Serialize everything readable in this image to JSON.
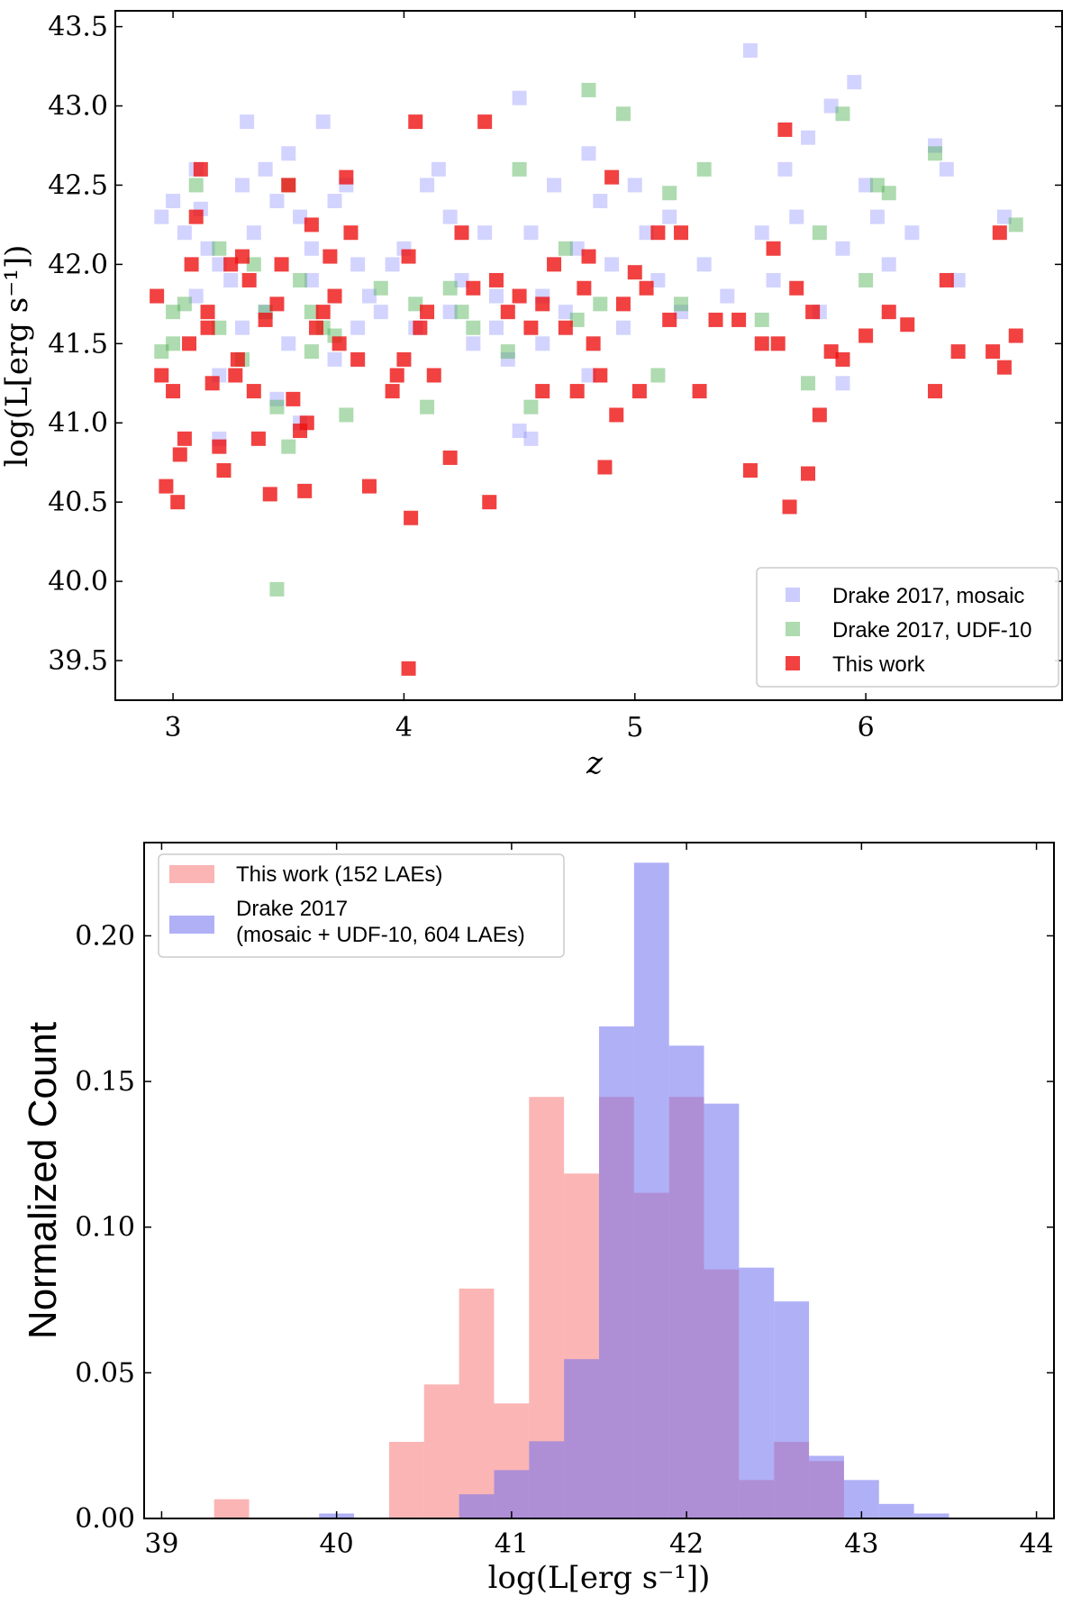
{
  "chart_data": [
    {
      "type": "scatter",
      "xlabel": "z",
      "ylabel": "log(L[erg s⁻¹])",
      "xlim": [
        2.75,
        6.85
      ],
      "ylim": [
        39.25,
        43.6
      ],
      "x_ticks": [
        "3",
        "4",
        "5",
        "6"
      ],
      "y_ticks": [
        "39.5",
        "40.0",
        "40.5",
        "41.0",
        "41.5",
        "42.0",
        "42.5",
        "43.0",
        "43.5"
      ],
      "legend_position": "lower-right",
      "series": [
        {
          "name": "Drake 2017, mosaic",
          "color": "#8080ff",
          "points": [
            [
              2.95,
              42.3
            ],
            [
              3.0,
              42.4
            ],
            [
              3.05,
              42.2
            ],
            [
              3.1,
              42.6
            ],
            [
              3.12,
              42.35
            ],
            [
              3.15,
              42.1
            ],
            [
              3.2,
              42.0
            ],
            [
              3.25,
              41.9
            ],
            [
              3.3,
              42.5
            ],
            [
              3.32,
              42.9
            ],
            [
              3.35,
              42.2
            ],
            [
              3.4,
              42.6
            ],
            [
              3.45,
              42.4
            ],
            [
              3.5,
              42.7
            ],
            [
              3.55,
              42.3
            ],
            [
              3.6,
              42.1
            ],
            [
              3.65,
              42.9
            ],
            [
              3.7,
              42.4
            ],
            [
              3.75,
              42.5
            ],
            [
              3.8,
              42.0
            ],
            [
              3.85,
              41.8
            ],
            [
              3.9,
              41.7
            ],
            [
              3.95,
              42.0
            ],
            [
              4.0,
              42.1
            ],
            [
              4.05,
              41.6
            ],
            [
              4.1,
              42.5
            ],
            [
              4.15,
              42.6
            ],
            [
              4.2,
              42.3
            ],
            [
              4.25,
              41.9
            ],
            [
              4.3,
              41.5
            ],
            [
              4.35,
              42.2
            ],
            [
              4.4,
              41.8
            ],
            [
              4.45,
              41.4
            ],
            [
              4.5,
              43.05
            ],
            [
              4.55,
              42.2
            ],
            [
              4.6,
              41.8
            ],
            [
              4.65,
              42.5
            ],
            [
              4.7,
              41.7
            ],
            [
              4.75,
              42.1
            ],
            [
              4.8,
              42.7
            ],
            [
              4.85,
              42.4
            ],
            [
              4.9,
              42.0
            ],
            [
              4.95,
              41.6
            ],
            [
              5.0,
              42.5
            ],
            [
              5.05,
              42.2
            ],
            [
              5.1,
              41.9
            ],
            [
              5.15,
              42.3
            ],
            [
              5.2,
              41.7
            ],
            [
              5.3,
              42.0
            ],
            [
              5.4,
              41.8
            ],
            [
              5.5,
              43.35
            ],
            [
              5.55,
              42.2
            ],
            [
              5.6,
              41.9
            ],
            [
              5.65,
              42.6
            ],
            [
              5.7,
              42.3
            ],
            [
              5.75,
              42.8
            ],
            [
              5.8,
              41.7
            ],
            [
              5.85,
              43.0
            ],
            [
              5.9,
              42.1
            ],
            [
              5.95,
              43.15
            ],
            [
              6.0,
              42.5
            ],
            [
              6.05,
              42.3
            ],
            [
              6.1,
              42.0
            ],
            [
              6.2,
              42.2
            ],
            [
              6.3,
              42.75
            ],
            [
              6.35,
              42.6
            ],
            [
              6.4,
              41.9
            ],
            [
              6.6,
              42.3
            ],
            [
              3.1,
              41.8
            ],
            [
              3.3,
              41.6
            ],
            [
              3.5,
              41.5
            ],
            [
              3.7,
              41.4
            ],
            [
              3.2,
              41.3
            ],
            [
              3.4,
              41.7
            ],
            [
              3.6,
              41.9
            ],
            [
              3.8,
              41.6
            ],
            [
              4.2,
              41.7
            ],
            [
              4.4,
              41.6
            ],
            [
              4.6,
              41.5
            ],
            [
              4.8,
              41.3
            ],
            [
              3.2,
              40.9
            ],
            [
              3.45,
              41.15
            ],
            [
              3.55,
              41.0
            ],
            [
              4.55,
              40.9
            ],
            [
              4.5,
              40.95
            ],
            [
              5.9,
              41.25
            ]
          ]
        },
        {
          "name": "Drake 2017, UDF-10",
          "color": "#4caf50",
          "points": [
            [
              2.95,
              41.45
            ],
            [
              3.0,
              41.7
            ],
            [
              3.05,
              41.75
            ],
            [
              3.1,
              42.5
            ],
            [
              3.2,
              41.6
            ],
            [
              3.3,
              41.4
            ],
            [
              3.35,
              42.0
            ],
            [
              3.4,
              41.7
            ],
            [
              3.45,
              41.1
            ],
            [
              3.5,
              42.5
            ],
            [
              3.55,
              41.9
            ],
            [
              3.6,
              41.7
            ],
            [
              3.65,
              41.6
            ],
            [
              3.7,
              41.55
            ],
            [
              3.75,
              41.05
            ],
            [
              3.45,
              39.95
            ],
            [
              3.5,
              40.85
            ],
            [
              3.9,
              41.85
            ],
            [
              4.05,
              41.75
            ],
            [
              4.1,
              41.1
            ],
            [
              4.2,
              41.85
            ],
            [
              4.25,
              41.7
            ],
            [
              4.3,
              41.6
            ],
            [
              4.45,
              41.45
            ],
            [
              4.5,
              42.6
            ],
            [
              4.55,
              41.1
            ],
            [
              4.7,
              42.1
            ],
            [
              4.8,
              43.1
            ],
            [
              4.85,
              41.75
            ],
            [
              4.95,
              42.95
            ],
            [
              5.1,
              41.3
            ],
            [
              5.15,
              42.45
            ],
            [
              5.2,
              41.75
            ],
            [
              5.3,
              42.6
            ],
            [
              5.55,
              41.65
            ],
            [
              5.75,
              41.25
            ],
            [
              5.8,
              42.2
            ],
            [
              5.9,
              42.95
            ],
            [
              6.0,
              41.9
            ],
            [
              6.05,
              42.5
            ],
            [
              6.1,
              42.45
            ],
            [
              6.3,
              42.7
            ],
            [
              6.65,
              42.25
            ],
            [
              3.0,
              41.5
            ],
            [
              3.2,
              42.1
            ],
            [
              3.6,
              41.45
            ],
            [
              4.75,
              41.65
            ]
          ]
        },
        {
          "name": "This work",
          "color": "#ee1111",
          "points": [
            [
              2.93,
              41.8
            ],
            [
              2.95,
              41.3
            ],
            [
              2.97,
              40.6
            ],
            [
              3.0,
              41.2
            ],
            [
              3.02,
              40.5
            ],
            [
              3.03,
              40.8
            ],
            [
              3.05,
              40.9
            ],
            [
              3.07,
              41.5
            ],
            [
              3.08,
              42.0
            ],
            [
              3.1,
              42.3
            ],
            [
              3.12,
              42.6
            ],
            [
              3.15,
              41.6
            ],
            [
              3.17,
              41.25
            ],
            [
              3.2,
              40.85
            ],
            [
              3.22,
              40.7
            ],
            [
              3.25,
              42.0
            ],
            [
              3.27,
              41.3
            ],
            [
              3.3,
              42.05
            ],
            [
              3.33,
              41.9
            ],
            [
              3.35,
              41.2
            ],
            [
              3.37,
              40.9
            ],
            [
              3.4,
              41.65
            ],
            [
              3.42,
              40.55
            ],
            [
              3.45,
              41.75
            ],
            [
              3.47,
              42.0
            ],
            [
              3.5,
              42.5
            ],
            [
              3.52,
              41.15
            ],
            [
              3.55,
              40.95
            ],
            [
              3.57,
              40.57
            ],
            [
              3.6,
              42.25
            ],
            [
              3.62,
              41.6
            ],
            [
              3.65,
              41.7
            ],
            [
              3.68,
              42.05
            ],
            [
              3.7,
              41.8
            ],
            [
              3.72,
              41.5
            ],
            [
              3.75,
              42.55
            ],
            [
              3.77,
              42.2
            ],
            [
              3.8,
              41.4
            ],
            [
              3.85,
              40.6
            ],
            [
              3.95,
              41.2
            ],
            [
              3.97,
              41.3
            ],
            [
              4.0,
              41.4
            ],
            [
              4.02,
              42.05
            ],
            [
              4.03,
              40.4
            ],
            [
              4.05,
              42.9
            ],
            [
              4.07,
              41.6
            ],
            [
              4.1,
              41.7
            ],
            [
              4.13,
              41.3
            ],
            [
              4.2,
              40.78
            ],
            [
              4.25,
              42.2
            ],
            [
              4.3,
              41.85
            ],
            [
              4.35,
              42.9
            ],
            [
              4.37,
              40.5
            ],
            [
              4.4,
              41.9
            ],
            [
              4.45,
              41.7
            ],
            [
              4.5,
              41.8
            ],
            [
              4.55,
              41.6
            ],
            [
              4.6,
              41.75
            ],
            [
              4.65,
              42.0
            ],
            [
              4.7,
              41.6
            ],
            [
              4.75,
              41.2
            ],
            [
              4.78,
              41.85
            ],
            [
              4.8,
              42.05
            ],
            [
              4.82,
              41.5
            ],
            [
              4.85,
              41.3
            ],
            [
              4.87,
              40.72
            ],
            [
              4.9,
              42.55
            ],
            [
              4.92,
              41.05
            ],
            [
              4.95,
              41.75
            ],
            [
              5.0,
              41.95
            ],
            [
              5.02,
              41.2
            ],
            [
              5.05,
              41.85
            ],
            [
              5.1,
              42.2
            ],
            [
              5.15,
              41.65
            ],
            [
              5.2,
              42.2
            ],
            [
              5.28,
              41.2
            ],
            [
              5.35,
              41.65
            ],
            [
              5.45,
              41.65
            ],
            [
              5.5,
              40.7
            ],
            [
              5.55,
              41.5
            ],
            [
              5.6,
              42.1
            ],
            [
              5.62,
              41.5
            ],
            [
              5.65,
              42.85
            ],
            [
              5.67,
              40.47
            ],
            [
              5.7,
              41.85
            ],
            [
              5.75,
              40.68
            ],
            [
              5.77,
              41.7
            ],
            [
              5.8,
              41.05
            ],
            [
              5.85,
              41.45
            ],
            [
              5.9,
              41.4
            ],
            [
              6.0,
              41.55
            ],
            [
              6.1,
              41.7
            ],
            [
              6.18,
              41.62
            ],
            [
              6.3,
              41.2
            ],
            [
              6.35,
              41.9
            ],
            [
              6.4,
              41.45
            ],
            [
              6.55,
              41.45
            ],
            [
              6.58,
              42.2
            ],
            [
              6.6,
              41.35
            ],
            [
              6.65,
              41.55
            ],
            [
              4.02,
              39.45
            ],
            [
              3.58,
              41.0
            ],
            [
              3.28,
              41.4
            ],
            [
              4.6,
              41.2
            ],
            [
              3.15,
              41.7
            ]
          ]
        }
      ]
    },
    {
      "type": "bar",
      "xlabel": "log(L[erg s⁻¹])",
      "ylabel": "Normalized Count",
      "xlim": [
        38.9,
        44.1
      ],
      "ylim": [
        0,
        0.232
      ],
      "x_ticks": [
        "39",
        "40",
        "41",
        "42",
        "43",
        "44"
      ],
      "y_ticks": [
        "0.00",
        "0.05",
        "0.10",
        "0.15",
        "0.20"
      ],
      "legend_position": "top-left",
      "bin_edges": [
        39.3,
        39.5,
        39.7,
        39.9,
        40.1,
        40.3,
        40.5,
        40.7,
        40.9,
        41.1,
        41.3,
        41.5,
        41.7,
        41.9,
        42.1,
        42.3,
        42.5,
        42.7,
        42.9,
        43.1,
        43.3,
        43.5
      ],
      "series": [
        {
          "name": "This work (152 LAEs)",
          "color": "#f87878",
          "values": [
            0.0066,
            0.0,
            0.0,
            0.0,
            0.0,
            0.0263,
            0.046,
            0.0789,
            0.0395,
            0.1447,
            0.1184,
            0.1447,
            0.1118,
            0.1447,
            0.0855,
            0.0132,
            0.0263,
            0.0197,
            0.0,
            0.0,
            0.0
          ]
        },
        {
          "name": "Drake 2017\n(mosaic + UDF-10, 604 LAEs)",
          "color": "#7070f0",
          "values": [
            0.0,
            0.0,
            0.0,
            0.0017,
            0.0,
            0.0,
            0.0,
            0.0083,
            0.0166,
            0.0265,
            0.0547,
            0.1689,
            0.2251,
            0.1623,
            0.1424,
            0.0861,
            0.0745,
            0.0215,
            0.0132,
            0.005,
            0.0017
          ]
        }
      ]
    }
  ]
}
